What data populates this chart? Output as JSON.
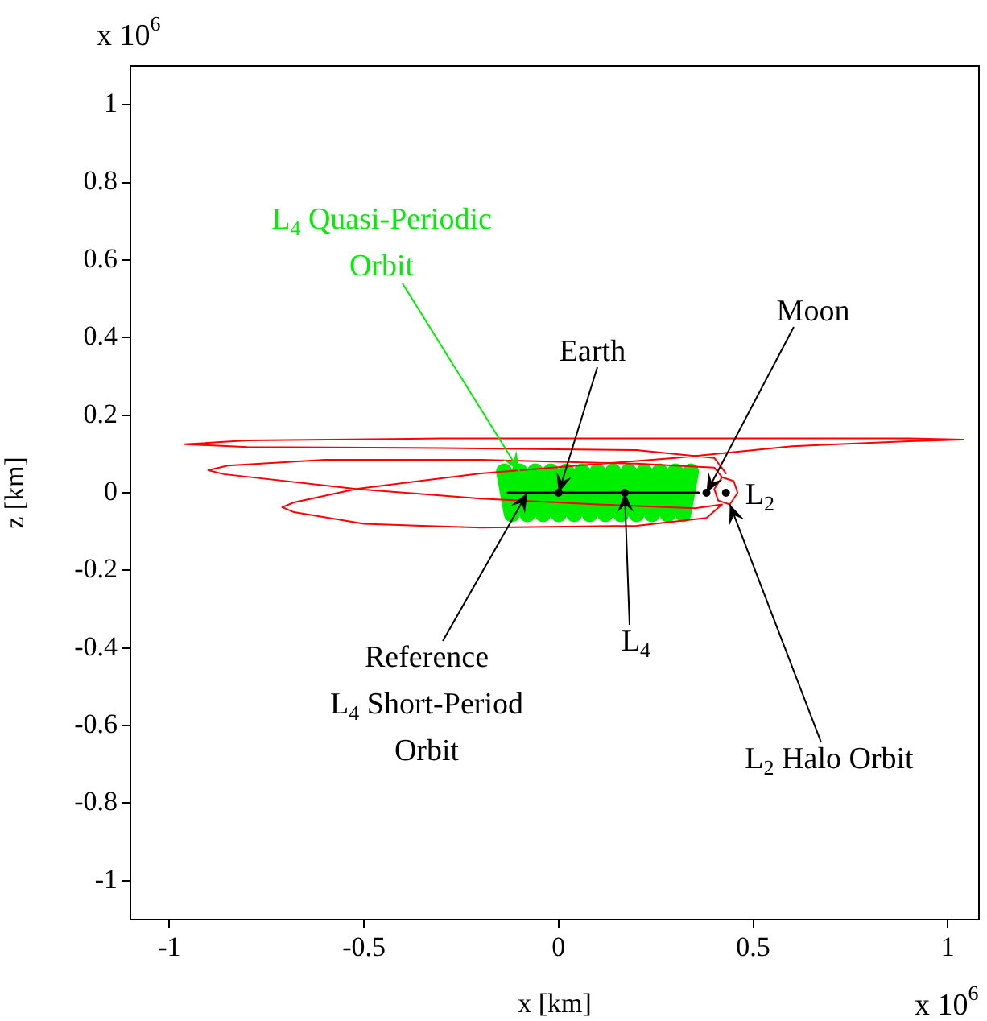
{
  "chart_data": {
    "type": "line",
    "xlabel": "x [km]",
    "ylabel": "z [km]",
    "xlim": [
      -1.1,
      1.08
    ],
    "xticks": [
      -1,
      -0.5,
      0,
      0.5,
      1
    ],
    "ylim": [
      -1.1,
      1.1
    ],
    "yticks": [
      -1,
      -0.8,
      -0.6,
      -0.4,
      -0.2,
      0,
      0.2,
      0.4,
      0.6,
      0.8,
      1
    ],
    "grid": false,
    "legend": false,
    "series": [
      {
        "type": "line",
        "color": "#00ee00",
        "x": [
          -0.14,
          -0.12,
          -0.1,
          -0.08,
          -0.06,
          -0.04,
          -0.02,
          0,
          0.02,
          0.04,
          0.06,
          0.08,
          0.1,
          0.12,
          0.14,
          0.16,
          0.18,
          0.2,
          0.22,
          0.24,
          0.26,
          0.28,
          0.3,
          0.32,
          0.34
        ],
        "values": [
          0.055,
          -0.055,
          0.055,
          -0.055,
          0.055,
          -0.055,
          0.055,
          -0.055,
          0.055,
          -0.055,
          0.055,
          -0.055,
          0.055,
          -0.055,
          0.055,
          -0.055,
          0.055,
          -0.055,
          0.055,
          -0.055,
          0.055,
          -0.055,
          0.055,
          -0.055,
          0.055
        ]
      },
      {
        "type": "line",
        "color": "#000000",
        "x": [
          -0.13,
          0.36
        ],
        "values": [
          0,
          0
        ]
      },
      {
        "type": "line",
        "color": "#ff0000",
        "x": [
          0.42,
          0.45,
          0.46,
          0.44,
          0.41,
          0.4,
          0.42,
          0.4,
          0.2,
          -0.2,
          -0.6,
          -0.85,
          -0.9,
          -0.86,
          -0.52,
          -0.2,
          0.1,
          0.35,
          0.42,
          0.38,
          0.2,
          -0.2,
          -0.5,
          -0.68,
          -0.71,
          -0.68,
          -0.52,
          -0.2,
          0.3,
          0.6,
          0.9,
          1.04,
          0.9,
          0.4,
          -0.3,
          -0.8,
          -0.96,
          -0.8,
          -0.3,
          0.2,
          0.4,
          0.43
        ],
        "values": [
          0.04,
          0.03,
          0,
          -0.03,
          -0.02,
          0.01,
          0.04,
          0.065,
          0.075,
          0.085,
          0.085,
          0.07,
          0.058,
          0.048,
          0.01,
          -0.015,
          -0.03,
          -0.04,
          -0.03,
          -0.065,
          -0.085,
          -0.09,
          -0.08,
          -0.05,
          -0.037,
          -0.025,
          0.01,
          0.05,
          0.09,
          0.12,
          0.133,
          0.137,
          0.14,
          0.14,
          0.14,
          0.135,
          0.125,
          0.118,
          0.115,
          0.11,
          0.09,
          0.05
        ]
      },
      {
        "type": "scatter",
        "color": "#000000",
        "marker": "circle",
        "x": [
          0,
          0.17,
          0.38,
          0.43
        ],
        "values": [
          0,
          0,
          0,
          0
        ]
      }
    ],
    "annotations": [
      {
        "text": "L$_{4}$ Quasi-Periodic Orbit",
        "x": -0.1,
        "y": 0.055
      },
      {
        "text": "Earth",
        "x": 0,
        "y": 0
      },
      {
        "text": "Moon",
        "x": 0.38,
        "y": 0
      },
      {
        "text": "L$_{2}$",
        "x": 0.43,
        "y": 0
      },
      {
        "text": "Reference L$_{4}$ Short-Period Orbit",
        "x": -0.08,
        "y": 0
      },
      {
        "text": "L$_{4}$",
        "x": 0.17,
        "y": 0
      },
      {
        "text": "L$_{2}$ Halo Orbit",
        "x": 0.44,
        "y": -0.03
      },
      "x 10$^{6}$",
      "x 10$^{6}$"
    ]
  }
}
